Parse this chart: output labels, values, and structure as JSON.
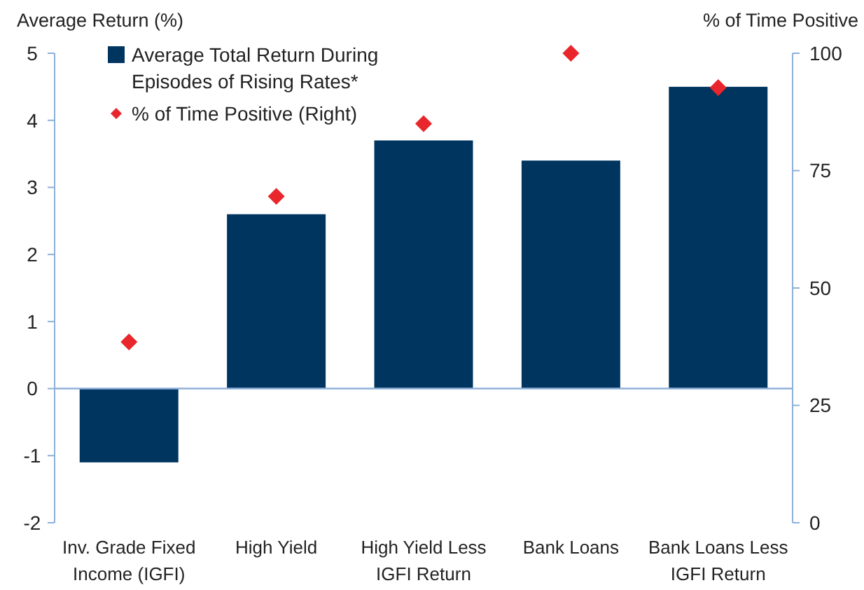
{
  "chart_data": {
    "type": "bar",
    "ylabel": "Average Return (%)",
    "y2label": "% of Time Positive",
    "categories": [
      "Inv. Grade Fixed Income (IGFI)",
      "High Yield",
      "High Yield Less IGFI Return",
      "Bank Loans",
      "Bank Loans Less IGFI Return"
    ],
    "series": [
      {
        "name": "Average Total Return During Episodes of Rising Rates*",
        "color": "#003560",
        "values": [
          -1.1,
          2.6,
          3.7,
          3.4,
          4.5
        ]
      },
      {
        "type": "scatter",
        "name": "% of Time Positive (Right)",
        "color": "#e8262b",
        "axis": "y2",
        "marker": "diamond",
        "values": [
          38.5,
          69.5,
          85,
          100,
          92.7
        ]
      }
    ],
    "ylim": [
      -2,
      5
    ],
    "yticks": [
      -2,
      -1,
      0,
      1,
      2,
      3,
      4,
      5
    ],
    "y2lim": [
      0,
      100
    ],
    "y2ticks": [
      0,
      25,
      50,
      75,
      100
    ],
    "ref_lines": [
      {
        "axis": "y",
        "value": 0,
        "color": "#8eb0d8"
      }
    ],
    "grid": false,
    "legend": "top left"
  }
}
